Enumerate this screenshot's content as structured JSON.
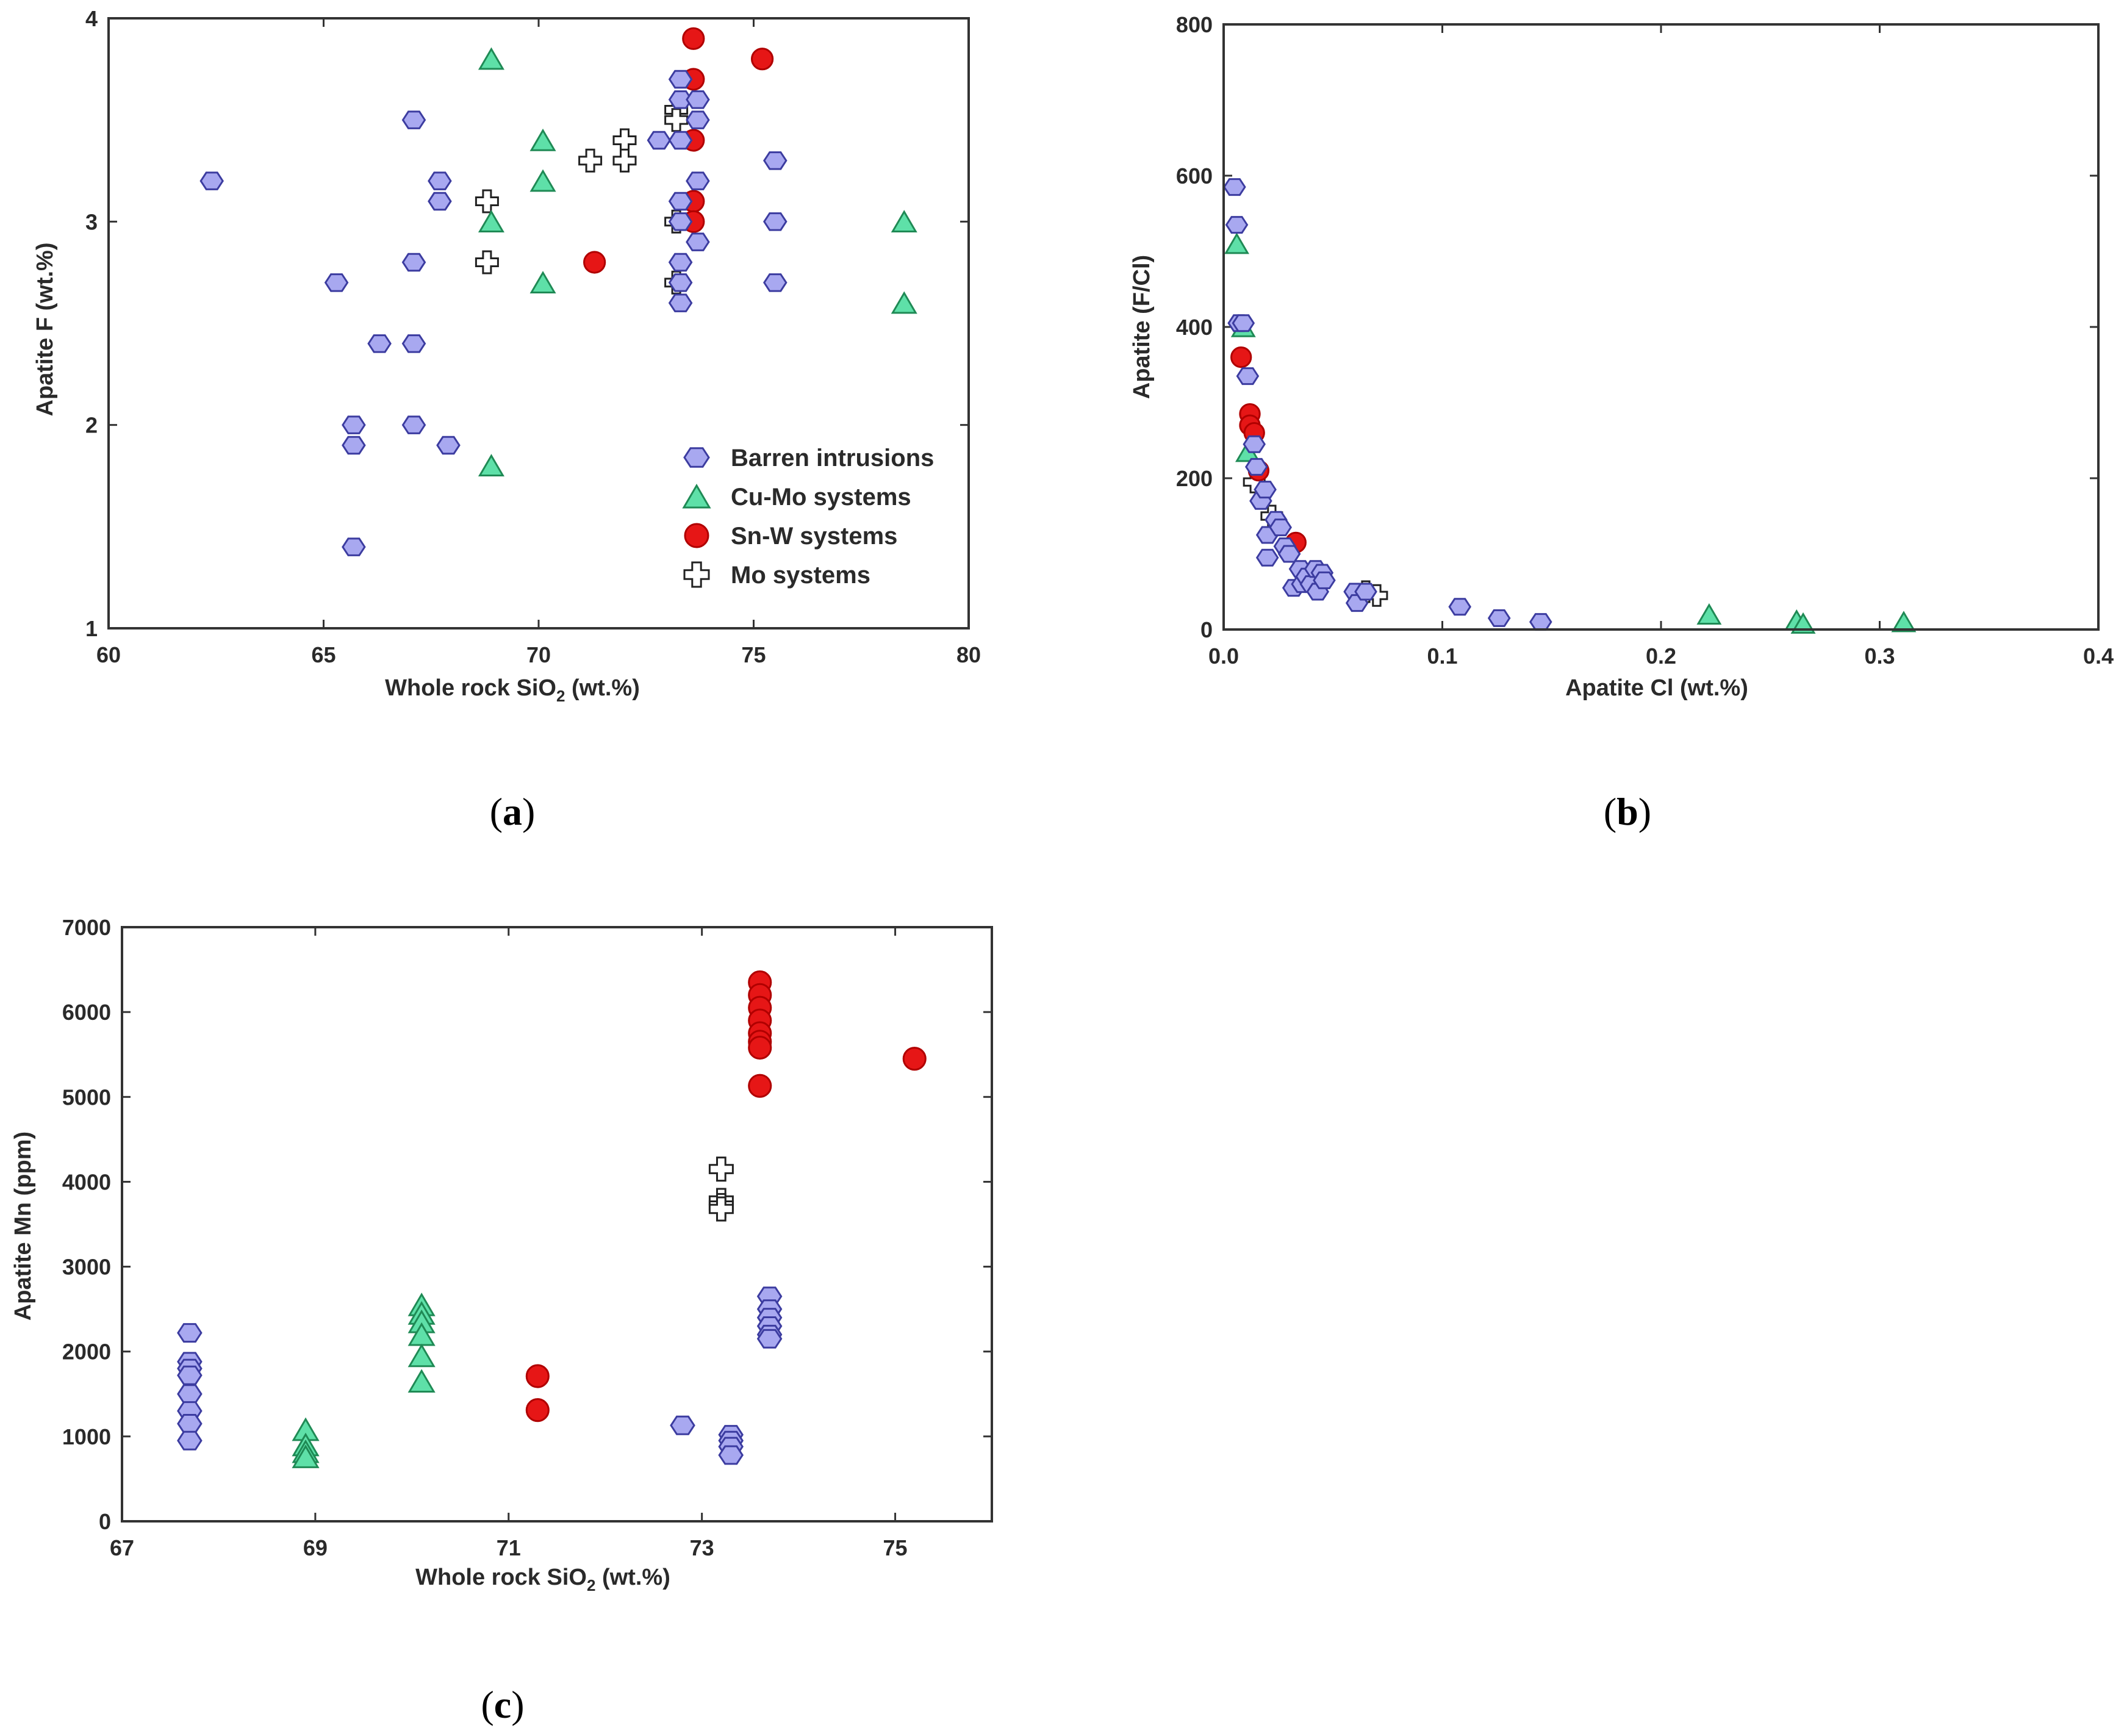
{
  "colors": {
    "barren_fill": "#a8a8f0",
    "barren_stroke": "#3c3ca0",
    "cumo_fill": "#5ee0a8",
    "cumo_stroke": "#1f8a55",
    "snw_fill": "#e61616",
    "snw_stroke": "#b00000",
    "mo_fill": "#ffffff",
    "mo_stroke": "#222222"
  },
  "legend": {
    "barren": "Barren intrusions",
    "cumo": "Cu-Mo systems",
    "snw": "Sn-W systems",
    "mo": "Mo systems"
  },
  "chart_data": [
    {
      "id": "a",
      "type": "scatter",
      "panel_label": "a",
      "xlabel_main": "Whole rock SiO",
      "xlabel_sub": "2",
      "xlabel_tail": " (wt.%)",
      "ylabel": "Apatite F (wt.%)",
      "xlim": [
        60,
        80
      ],
      "ylim": [
        1,
        4
      ],
      "xticks": [
        60,
        65,
        70,
        75,
        80
      ],
      "yticks": [
        1,
        2,
        3,
        4
      ],
      "xtick_labels": [
        "60",
        "65",
        "70",
        "75",
        "80"
      ],
      "ytick_labels": [
        "1",
        "2",
        "3",
        "4"
      ],
      "legend_position": "bottom-right",
      "series": [
        {
          "name": "barren",
          "marker": "hexagon",
          "points": [
            [
              62.4,
              3.2
            ],
            [
              65.3,
              2.7
            ],
            [
              65.7,
              2.0
            ],
            [
              65.7,
              1.9
            ],
            [
              65.7,
              1.4
            ],
            [
              66.3,
              2.4
            ],
            [
              67.1,
              3.5
            ],
            [
              67.1,
              2.8
            ],
            [
              67.1,
              2.4
            ],
            [
              67.1,
              2.0
            ],
            [
              67.7,
              3.2
            ],
            [
              67.7,
              3.1
            ],
            [
              67.9,
              1.9
            ],
            [
              72.8,
              3.4
            ],
            [
              73.3,
              3.7
            ],
            [
              73.3,
              3.6
            ],
            [
              73.3,
              3.4
            ],
            [
              73.3,
              3.1
            ],
            [
              73.3,
              3.0
            ],
            [
              73.3,
              2.8
            ],
            [
              73.3,
              2.7
            ],
            [
              73.3,
              2.6
            ],
            [
              73.7,
              3.6
            ],
            [
              73.7,
              3.5
            ],
            [
              73.7,
              3.2
            ],
            [
              73.7,
              2.9
            ],
            [
              75.5,
              3.3
            ],
            [
              75.5,
              3.0
            ],
            [
              75.5,
              2.7
            ]
          ]
        },
        {
          "name": "cumo",
          "marker": "triangle",
          "points": [
            [
              68.9,
              3.8
            ],
            [
              68.9,
              3.0
            ],
            [
              68.9,
              1.8
            ],
            [
              70.1,
              3.4
            ],
            [
              70.1,
              3.2
            ],
            [
              70.1,
              2.7
            ],
            [
              78.5,
              3.0
            ],
            [
              78.5,
              2.6
            ]
          ]
        },
        {
          "name": "snw",
          "marker": "circle",
          "points": [
            [
              73.6,
              3.9
            ],
            [
              73.6,
              3.7
            ],
            [
              73.6,
              3.4
            ],
            [
              73.6,
              3.1
            ],
            [
              73.6,
              3.0
            ],
            [
              75.2,
              3.8
            ],
            [
              71.3,
              2.8
            ]
          ]
        },
        {
          "name": "mo",
          "marker": "cross",
          "points": [
            [
              68.8,
              3.1
            ],
            [
              68.8,
              2.8
            ],
            [
              71.2,
              3.3
            ],
            [
              72.0,
              3.4
            ],
            [
              72.0,
              3.3
            ],
            [
              73.2,
              3.55
            ],
            [
              73.2,
              3.5
            ],
            [
              73.2,
              3.0
            ],
            [
              73.2,
              2.7
            ]
          ]
        }
      ]
    },
    {
      "id": "b",
      "type": "scatter",
      "panel_label": "b",
      "xlabel": "Apatite Cl (wt.%)",
      "ylabel": "Apatite (F/Cl)",
      "xlim": [
        0.0,
        0.4
      ],
      "ylim": [
        0,
        800
      ],
      "xticks": [
        0.0,
        0.1,
        0.2,
        0.3,
        0.4
      ],
      "yticks": [
        0,
        200,
        400,
        600,
        800
      ],
      "xtick_labels": [
        "0.0",
        "0.1",
        "0.2",
        "0.3",
        "0.4"
      ],
      "ytick_labels": [
        "0",
        "200",
        "400",
        "600",
        "800"
      ],
      "series": [
        {
          "name": "barren",
          "marker": "hexagon",
          "points": [
            [
              0.005,
              585
            ],
            [
              0.006,
              535
            ],
            [
              0.007,
              405
            ],
            [
              0.009,
              405
            ],
            [
              0.011,
              335
            ],
            [
              0.014,
              245
            ],
            [
              0.015,
              215
            ],
            [
              0.017,
              170
            ],
            [
              0.019,
              185
            ],
            [
              0.02,
              125
            ],
            [
              0.02,
              95
            ],
            [
              0.024,
              145
            ],
            [
              0.026,
              135
            ],
            [
              0.028,
              110
            ],
            [
              0.03,
              100
            ],
            [
              0.032,
              55
            ],
            [
              0.035,
              80
            ],
            [
              0.036,
              60
            ],
            [
              0.038,
              70
            ],
            [
              0.04,
              60
            ],
            [
              0.042,
              80
            ],
            [
              0.043,
              50
            ],
            [
              0.045,
              75
            ],
            [
              0.046,
              65
            ],
            [
              0.06,
              50
            ],
            [
              0.061,
              35
            ],
            [
              0.065,
              50
            ],
            [
              0.108,
              30
            ],
            [
              0.126,
              15
            ],
            [
              0.145,
              10
            ]
          ]
        },
        {
          "name": "cumo",
          "marker": "triangle",
          "points": [
            [
              0.006,
              510
            ],
            [
              0.009,
              400
            ],
            [
              0.011,
              235
            ],
            [
              0.222,
              20
            ],
            [
              0.262,
              12
            ],
            [
              0.265,
              8
            ],
            [
              0.311,
              10
            ]
          ]
        },
        {
          "name": "snw",
          "marker": "circle",
          "points": [
            [
              0.008,
              360
            ],
            [
              0.012,
              285
            ],
            [
              0.012,
              270
            ],
            [
              0.014,
              260
            ],
            [
              0.016,
              210
            ],
            [
              0.033,
              115
            ]
          ]
        },
        {
          "name": "mo",
          "marker": "cross",
          "points": [
            [
              0.014,
              195
            ],
            [
              0.022,
              150
            ],
            [
              0.065,
              50
            ],
            [
              0.07,
              45
            ]
          ]
        }
      ]
    },
    {
      "id": "c",
      "type": "scatter",
      "panel_label": "c",
      "xlabel_main": "Whole rock SiO",
      "xlabel_sub": "2",
      "xlabel_tail": " (wt.%)",
      "ylabel": "Apatite Mn (ppm)",
      "xlim": [
        67,
        76
      ],
      "ylim": [
        0,
        7000
      ],
      "xticks": [
        67,
        69,
        71,
        73,
        75
      ],
      "yticks": [
        0,
        1000,
        2000,
        3000,
        4000,
        5000,
        6000,
        7000
      ],
      "xtick_labels": [
        "67",
        "69",
        "71",
        "73",
        "75"
      ],
      "ytick_labels": [
        "0",
        "1000",
        "2000",
        "3000",
        "4000",
        "5000",
        "6000",
        "7000"
      ],
      "series": [
        {
          "name": "barren",
          "marker": "hexagon",
          "points": [
            [
              67.7,
              2220
            ],
            [
              67.7,
              1880
            ],
            [
              67.7,
              1800
            ],
            [
              67.7,
              1720
            ],
            [
              67.7,
              1500
            ],
            [
              67.7,
              1300
            ],
            [
              67.7,
              1150
            ],
            [
              67.7,
              950
            ],
            [
              72.8,
              1130
            ],
            [
              73.3,
              1020
            ],
            [
              73.3,
              950
            ],
            [
              73.3,
              880
            ],
            [
              73.3,
              780
            ],
            [
              73.7,
              2650
            ],
            [
              73.7,
              2500
            ],
            [
              73.7,
              2400
            ],
            [
              73.7,
              2300
            ],
            [
              73.7,
              2200
            ],
            [
              73.7,
              2150
            ]
          ]
        },
        {
          "name": "cumo",
          "marker": "triangle",
          "points": [
            [
              68.9,
              1080
            ],
            [
              68.9,
              900
            ],
            [
              68.9,
              820
            ],
            [
              68.9,
              760
            ],
            [
              70.1,
              2550
            ],
            [
              70.1,
              2450
            ],
            [
              70.1,
              2350
            ],
            [
              70.1,
              2200
            ],
            [
              70.1,
              1950
            ],
            [
              70.1,
              1650
            ]
          ]
        },
        {
          "name": "snw",
          "marker": "circle",
          "points": [
            [
              73.6,
              6350
            ],
            [
              73.6,
              6200
            ],
            [
              73.6,
              6050
            ],
            [
              73.6,
              5900
            ],
            [
              73.6,
              5750
            ],
            [
              73.6,
              5650
            ],
            [
              73.6,
              5580
            ],
            [
              73.6,
              5130
            ],
            [
              75.2,
              5450
            ],
            [
              71.3,
              1710
            ],
            [
              71.3,
              1310
            ]
          ]
        },
        {
          "name": "mo",
          "marker": "cross",
          "points": [
            [
              73.2,
              4150
            ],
            [
              73.2,
              3780
            ],
            [
              73.2,
              3720
            ],
            [
              73.2,
              3680
            ]
          ]
        }
      ]
    }
  ]
}
